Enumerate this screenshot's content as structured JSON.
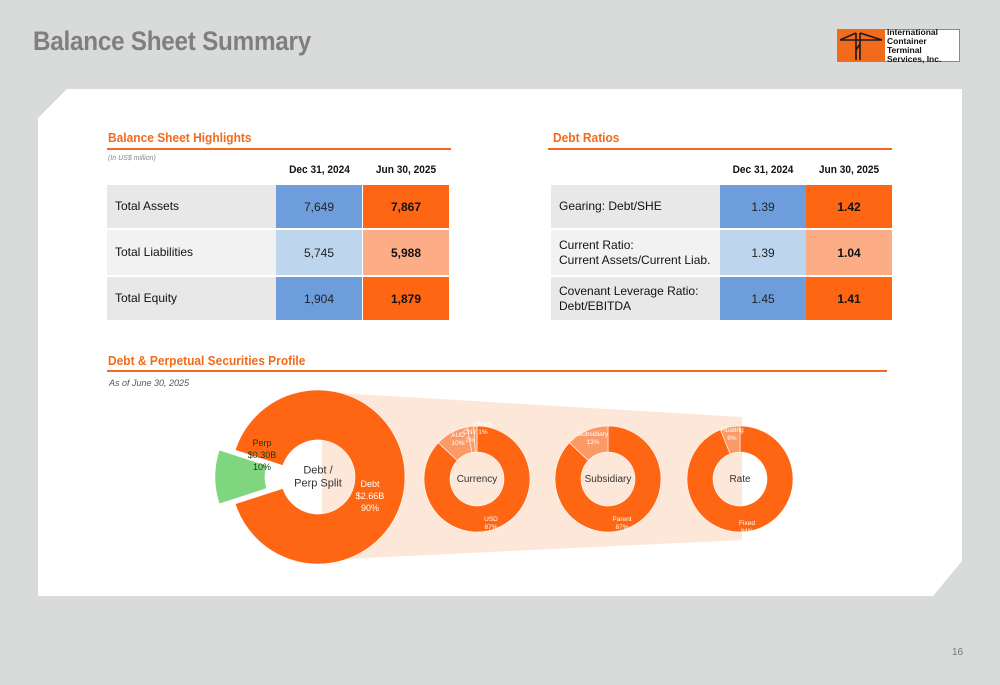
{
  "header": {
    "title": "Balance Sheet Summary"
  },
  "logo": {
    "lines": [
      "International",
      "Container Terminal",
      "Services, Inc."
    ]
  },
  "highlights": {
    "title": "Balance Sheet Highlights",
    "unit_note": "(In US$ million)",
    "columns": [
      "Dec 31, 2024",
      "Jun 30, 2025"
    ],
    "rows": [
      {
        "label": "Total Assets",
        "values": [
          "7,649",
          "7,867"
        ]
      },
      {
        "label": "Total Liabilities",
        "values": [
          "5,745",
          "5,988"
        ]
      },
      {
        "label": "Total Equity",
        "values": [
          "1,904",
          "1,879"
        ]
      }
    ]
  },
  "ratios": {
    "title": "Debt Ratios",
    "columns": [
      "Dec 31, 2024",
      "Jun 30, 2025"
    ],
    "rows": [
      {
        "label_lines": [
          "Gearing: Debt/SHE"
        ],
        "values": [
          "1.39",
          "1.42"
        ]
      },
      {
        "label_lines": [
          "Current Ratio:",
          "Current Assets/Current Liab."
        ],
        "values": [
          "1.39",
          "1.04"
        ]
      },
      {
        "label_lines": [
          "Covenant Leverage Ratio:",
          "Debt/EBITDA"
        ],
        "values": [
          "1.45",
          "1.41"
        ]
      }
    ]
  },
  "profile": {
    "title": "Debt & Perpetual Securities Profile",
    "as_of": "As of June 30, 2025",
    "colors": {
      "orange": "#ff6614",
      "light_orange": "#fb9a66",
      "green": "#7fd67f",
      "fan": "#fde3d2"
    },
    "split": {
      "center_lines": [
        "Debt /",
        "Perp Split"
      ],
      "slices": [
        {
          "label_lines": [
            "Debt",
            "$2.66B",
            "90%"
          ],
          "pct": 90
        },
        {
          "label_lines": [
            "Perp",
            "$0.30B",
            "10%"
          ],
          "pct": 10
        }
      ]
    },
    "currency": {
      "center": "Currency",
      "slices": [
        {
          "label_lines": [
            "USD",
            "87%"
          ],
          "pct": 87
        },
        {
          "label_lines": [
            "AUD",
            "10%"
          ],
          "pct": 10
        },
        {
          "label_lines": [
            "CNY",
            "2%"
          ],
          "pct": 2
        },
        {
          "label_lines": [
            "Others",
            "1%"
          ],
          "pct": 1
        }
      ]
    },
    "subsidiary": {
      "center": "Subsidiary",
      "slices": [
        {
          "label_lines": [
            "Parent",
            "87%"
          ],
          "pct": 87
        },
        {
          "label_lines": [
            "Subsidiary",
            "13%"
          ],
          "pct": 13
        }
      ]
    },
    "rate": {
      "center": "Rate",
      "slices": [
        {
          "label_lines": [
            "Fixed",
            "94%"
          ],
          "pct": 94
        },
        {
          "label_lines": [
            "Floating",
            "6%"
          ],
          "pct": 6
        }
      ]
    }
  },
  "footer": {
    "page_number": "16"
  }
}
